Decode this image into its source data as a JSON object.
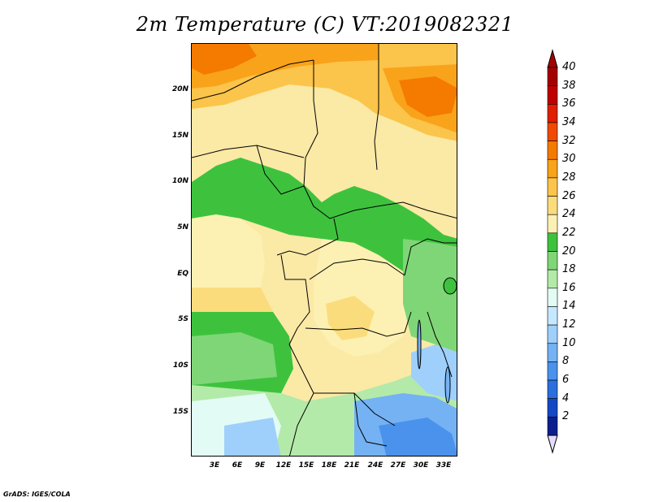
{
  "title": "2m Temperature (C) VT:2019082321",
  "credit": "GrADS: IGES/COLA",
  "lat_labels": [
    "20N",
    "15N",
    "10N",
    "5N",
    "EQ",
    "5S",
    "10S",
    "15S"
  ],
  "lon_labels": [
    "3E",
    "6E",
    "9E",
    "12E",
    "15E",
    "18E",
    "21E",
    "24E",
    "27E",
    "30E",
    "33E"
  ],
  "colorbar": {
    "labels": [
      "40",
      "38",
      "36",
      "34",
      "32",
      "30",
      "28",
      "26",
      "24",
      "22",
      "20",
      "18",
      "16",
      "14",
      "12",
      "10",
      "8",
      "6",
      "4",
      "2"
    ],
    "colors": [
      "#a50000",
      "#c00000",
      "#e01e00",
      "#f04a00",
      "#f57a00",
      "#f9a31a",
      "#fbc44a",
      "#fbdc7d",
      "#fcf1b2",
      "#3ec23e",
      "#7fd677",
      "#b4eaa9",
      "#e2fbf4",
      "#c6e8ff",
      "#9fd0fb",
      "#74b2f4",
      "#4a92ec",
      "#2a6fdd",
      "#1347c5",
      "#0b1f8f"
    ],
    "top_arrow_color": "#a50000",
    "bottom_arrow_color": "#e4dcff"
  }
}
